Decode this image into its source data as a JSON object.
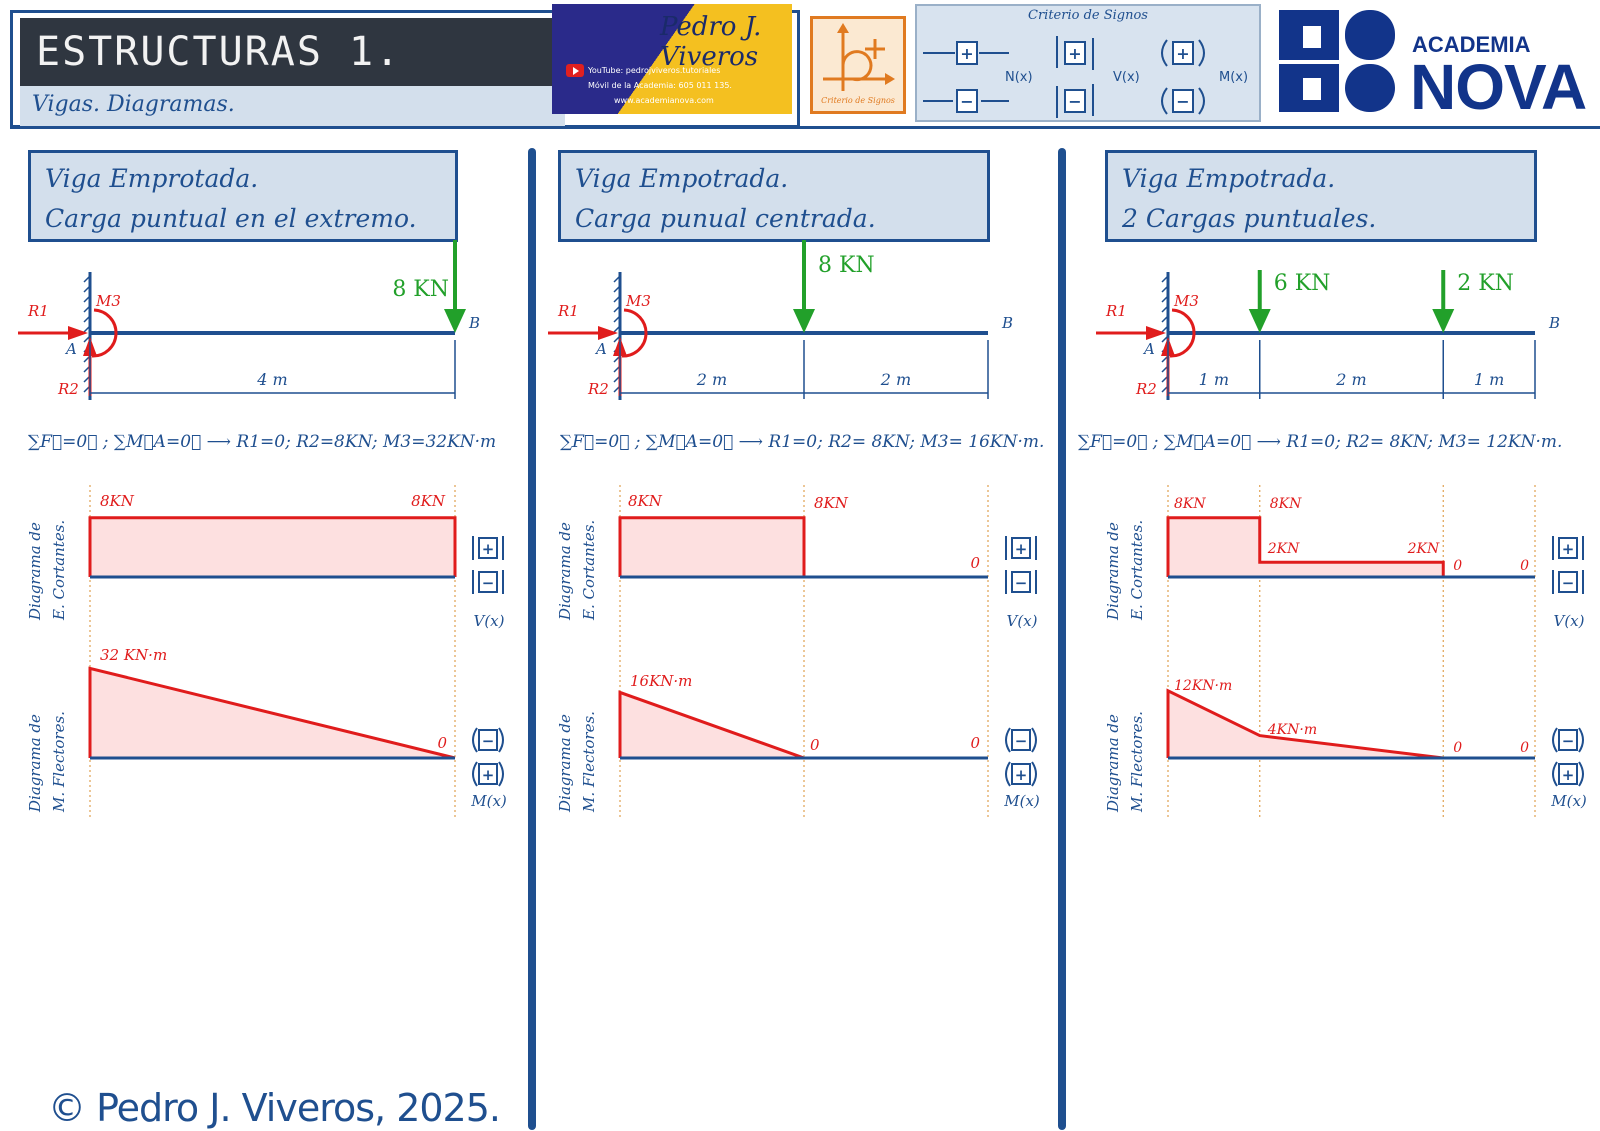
{
  "header": {
    "title": "ESTRUCTURAS 1.",
    "subtitle": "Vigas. Diagramas.",
    "promo": {
      "signature": "Pedro J. Viveros",
      "youtube": "YouTube: pedrojviveros.tutoriales",
      "phone": "Móvil de la Academia: 605 011 135.",
      "web": "www.academianova.com"
    },
    "criterio_icon_label": "Criterio de Signos",
    "signs": {
      "title": "Criterio de Signos",
      "N": "N(x)",
      "V": "V(x)",
      "M": "M(x)"
    },
    "logo": {
      "line1": "ACADEMIA",
      "line2": "NOVA"
    }
  },
  "colors": {
    "primary": "#1f4f8f",
    "load": "#22a02a",
    "diagram": "#e01c1c",
    "fill": "#fde0e0",
    "panel": "#d3dfec"
  },
  "panels": [
    {
      "title1": "Viga Emprotada.",
      "title2": "Carga puntual en el extremo.",
      "load_label": "8 KN",
      "span_labels": [
        "4 m"
      ],
      "equation": "∑F⃗=0⃗ ;  ∑M⃗A=0⃗  ⟶  R1=0;  R2=8KN;  M3=32KN·m",
      "shear_labels": [
        "8KN",
        "8KN"
      ],
      "moment_labels": [
        "32 KN·m",
        "0"
      ]
    },
    {
      "title1": "Viga Empotrada.",
      "title2": "Carga punual centrada.",
      "load_label": "8 KN",
      "span_labels": [
        "2 m",
        "2 m"
      ],
      "equation": "∑F⃗=0⃗ ;  ∑M⃗A=0⃗  ⟶ R1=0;  R2= 8KN;  M3= 16KN·m.",
      "shear_labels": [
        "8KN",
        "8KN",
        "0"
      ],
      "moment_labels": [
        "16KN·m",
        "0",
        "0"
      ]
    },
    {
      "title1": "Viga Empotrada.",
      "title2": "2 Cargas puntuales.",
      "load_labels": [
        "6 KN",
        "2 KN"
      ],
      "span_labels": [
        "1 m",
        "2 m",
        "1 m"
      ],
      "equation": "∑F⃗=0⃗ ;  ∑M⃗A=0⃗  ⟶ R1=0;  R2= 8KN;  M3= 12KN·m.",
      "shear_labels": [
        "8KN",
        "8KN",
        "2KN",
        "2KN",
        "0",
        "0"
      ],
      "moment_labels": [
        "12KN·m",
        "4KN·m",
        "0",
        "0"
      ]
    }
  ],
  "beam_labels": {
    "R1": "R1",
    "R2": "R2",
    "M3": "M3",
    "A": "A",
    "B": "B"
  },
  "axis_labels": {
    "shear_1": "Diagrama de",
    "shear_2": "E. Cortantes.",
    "moment_1": "Diagrama de",
    "moment_2": "M. Flectores.",
    "V": "V(x)",
    "M": "M(x)"
  },
  "chart_data": [
    {
      "type": "area",
      "title": "Diagrama de E. Cortantes.",
      "x": [
        0,
        4
      ],
      "series": [
        {
          "values": [
            8,
            8
          ]
        }
      ],
      "xlabel": "4 m",
      "ylabel": "V(x)"
    },
    {
      "type": "area",
      "title": "Diagrama de M. Flectores.",
      "x": [
        0,
        4
      ],
      "series": [
        {
          "values": [
            32,
            0
          ]
        }
      ],
      "ylabel": "M(x)"
    },
    {
      "type": "area",
      "title": "Diagrama de E. Cortantes.",
      "x": [
        0,
        2,
        2,
        4
      ],
      "series": [
        {
          "values": [
            8,
            8,
            0,
            0
          ]
        }
      ],
      "ylabel": "V(x)"
    },
    {
      "type": "area",
      "title": "Diagrama de M. Flectores.",
      "x": [
        0,
        2,
        4
      ],
      "series": [
        {
          "values": [
            16,
            0,
            0
          ]
        }
      ],
      "ylabel": "M(x)"
    },
    {
      "type": "area",
      "title": "Diagrama de E. Cortantes.",
      "x": [
        0,
        1,
        1,
        3,
        3,
        4
      ],
      "series": [
        {
          "values": [
            8,
            8,
            2,
            2,
            0,
            0
          ]
        }
      ],
      "ylabel": "V(x)"
    },
    {
      "type": "area",
      "title": "Diagrama de M. Flectores.",
      "x": [
        0,
        1,
        3,
        4
      ],
      "series": [
        {
          "values": [
            12,
            4,
            0,
            0
          ]
        }
      ],
      "ylabel": "M(x)"
    }
  ],
  "copyright": "© Pedro J. Viveros, 2025."
}
